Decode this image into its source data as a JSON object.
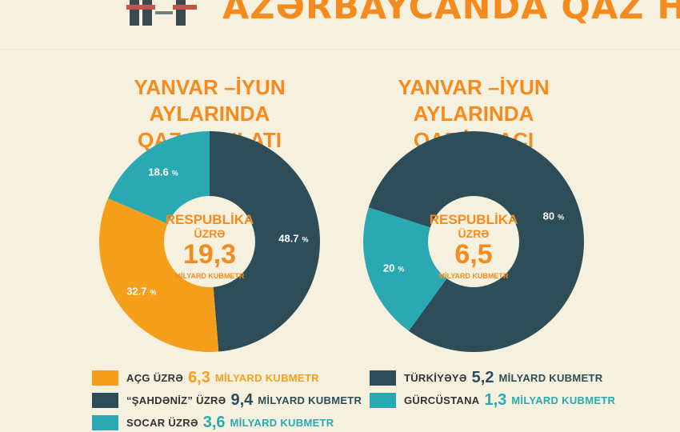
{
  "header": {
    "title": "AZƏRBAYCANDA QAZ HASILATI"
  },
  "colors": {
    "orange": "#f59f1b",
    "dark": "#2d4e58",
    "teal": "#2aa9b3",
    "accent": "#f58b1f"
  },
  "chart_data": [
    {
      "type": "pie",
      "title_lines": [
        "YANVAR –İYUN AYLARINDA",
        "QAZ HASILATI"
      ],
      "center": {
        "line1": "RESPUBLİKA",
        "line2": "ÜZRƏ",
        "value": "19,3",
        "unit": "MİLYARD KUBMETR"
      },
      "slices": [
        {
          "name": "ŞAHDƏNIZ",
          "value": 48.7,
          "label": "48.7 %",
          "color": "#2d4e58"
        },
        {
          "name": "AÇG",
          "value": 32.7,
          "label": "32.7 %",
          "color": "#f59f1b"
        },
        {
          "name": "SOCAR",
          "value": 18.6,
          "label": "18.6 %",
          "color": "#2aa9b3"
        }
      ],
      "legend": [
        {
          "name": "AÇG ÜZRƏ",
          "value": "6,3",
          "unit": "MİLYARD KUBMETR",
          "color": "#f59f1b"
        },
        {
          "name": "“ŞAHDƏNİZ” ÜZRƏ",
          "value": "9,4",
          "unit": "MİLYARD KUBMETR",
          "color": "#2d4e58"
        },
        {
          "name": "SOCAR ÜZRƏ",
          "value": "3,6",
          "unit": "MİLYARD KUBMETR",
          "color": "#2aa9b3"
        }
      ]
    },
    {
      "type": "pie",
      "title_lines": [
        "YANVAR –İYUN AYLARINDA",
        "QAZ İXRACI"
      ],
      "center": {
        "line1": "RESPUBLİKA",
        "line2": "ÜZRƏ",
        "value": "6,5",
        "unit": "MİLYARD KUBMETR"
      },
      "slices": [
        {
          "name": "TÜRKİYƏYƏ",
          "value": 80,
          "label": "80 %",
          "color": "#2d4e58"
        },
        {
          "name": "GÜRCÜSTANA",
          "value": 20,
          "label": "20 %",
          "color": "#2aa9b3"
        }
      ],
      "legend": [
        {
          "name": "TÜRKİYƏYƏ",
          "value": "5,2",
          "unit": "MİLYARD KUBMETR",
          "color": "#2d4e58"
        },
        {
          "name": "GÜRCÜSTANA",
          "value": "1,3",
          "unit": "MİLYARD KUBMETR",
          "color": "#2aa9b3"
        }
      ]
    }
  ]
}
